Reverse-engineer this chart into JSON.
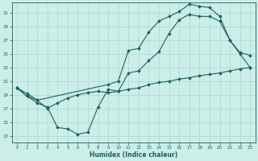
{
  "xlabel": "Humidex (Indice chaleur)",
  "bg_color": "#cceee8",
  "grid_color": "#aad8d3",
  "line_color": "#1a6060",
  "xlim": [
    -0.5,
    23.5
  ],
  "ylim": [
    12.0,
    32.5
  ],
  "yticks": [
    13,
    15,
    17,
    19,
    21,
    23,
    25,
    27,
    29,
    31
  ],
  "xticks": [
    0,
    1,
    2,
    3,
    4,
    5,
    6,
    7,
    8,
    9,
    10,
    11,
    12,
    13,
    14,
    15,
    16,
    17,
    18,
    19,
    20,
    21,
    22,
    23
  ],
  "line1_x": [
    0,
    1,
    2,
    3,
    4,
    5,
    6,
    7,
    8,
    9,
    10,
    11,
    12,
    13,
    14,
    15,
    16,
    17,
    18,
    19,
    20,
    21,
    22,
    23
  ],
  "line1_y": [
    20.0,
    18.8,
    18.2,
    17.0,
    17.8,
    18.5,
    19.0,
    19.3,
    19.5,
    19.3,
    19.5,
    19.8,
    20.0,
    20.5,
    20.8,
    21.0,
    21.3,
    21.5,
    21.8,
    22.0,
    22.2,
    22.5,
    22.8,
    23.0
  ],
  "line2_x": [
    0,
    1,
    2,
    3,
    4,
    5,
    6,
    7,
    8,
    9,
    10,
    11,
    12,
    13,
    14,
    15,
    16,
    17,
    18,
    19,
    20,
    21,
    22,
    23
  ],
  "line2_y": [
    20.0,
    18.8,
    17.8,
    17.2,
    14.2,
    14.0,
    13.2,
    13.5,
    17.2,
    19.8,
    19.5,
    22.2,
    22.5,
    24.0,
    25.3,
    28.0,
    30.0,
    30.8,
    30.5,
    30.5,
    29.8,
    27.0,
    25.0,
    23.0
  ],
  "line3_x": [
    0,
    1,
    2,
    9,
    10,
    11,
    12,
    13,
    14,
    15,
    16,
    17,
    18,
    19,
    20,
    21,
    22,
    23
  ],
  "line3_y": [
    20.0,
    19.2,
    18.2,
    20.5,
    21.0,
    25.5,
    25.8,
    28.2,
    29.8,
    30.5,
    31.2,
    32.3,
    32.0,
    31.8,
    30.5,
    27.0,
    25.2,
    24.8
  ]
}
